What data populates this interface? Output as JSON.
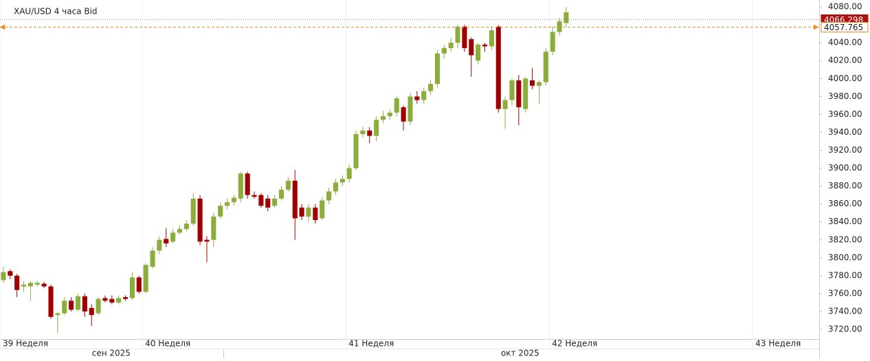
{
  "chart_data": {
    "type": "candlestick",
    "title": "XAU/USD  4 часа Bid",
    "up_color": "#8cac3c",
    "down_color": "#a00000",
    "open": [
      3775,
      3785,
      3780,
      3768,
      3768,
      3770,
      3771,
      3768,
      3736,
      3738,
      3752,
      3742,
      3757,
      3744,
      3738,
      3755,
      3754,
      3750,
      3756,
      3755,
      3778,
      3762,
      3790,
      3808,
      3821,
      3818,
      3828,
      3832,
      3838,
      3866,
      3820,
      3820,
      3846,
      3858,
      3862,
      3866,
      3894,
      3870,
      3870,
      3866,
      3858,
      3866,
      3876,
      3886,
      3856,
      3846,
      3856,
      3844,
      3864,
      3874,
      3884,
      3888,
      3900,
      3938,
      3942,
      3936,
      3954,
      3958,
      3962,
      3968,
      3952,
      3980,
      3976,
      3986,
      3994,
      4028,
      4034,
      4040,
      4058,
      4044,
      4020,
      4038,
      4036,
      4058,
      3966,
      3976,
      3998,
      3966,
      3998,
      3992,
      3996,
      4030,
      4052,
      4062
    ],
    "high": [
      3790,
      3787,
      3782,
      3774,
      3774,
      3774,
      3773,
      3770,
      3740,
      3756,
      3756,
      3760,
      3760,
      3748,
      3756,
      3758,
      3758,
      3758,
      3758,
      3784,
      3780,
      3794,
      3812,
      3824,
      3833,
      3832,
      3836,
      3842,
      3872,
      3870,
      3824,
      3850,
      3862,
      3866,
      3870,
      3896,
      3896,
      3874,
      3872,
      3870,
      3870,
      3880,
      3890,
      3898,
      3860,
      3860,
      3860,
      3868,
      3878,
      3888,
      3892,
      3904,
      3942,
      3946,
      3946,
      3958,
      3964,
      3966,
      3980,
      3970,
      3984,
      3986,
      3990,
      3998,
      4032,
      4038,
      4046,
      4060,
      4060,
      4046,
      4040,
      4040,
      4058,
      4060,
      3980,
      4000,
      4004,
      4002,
      4012,
      3998,
      4034,
      4058,
      4068,
      4080
    ],
    "low": [
      3772,
      3776,
      3756,
      3762,
      3752,
      3768,
      3766,
      3732,
      3716,
      3736,
      3740,
      3740,
      3734,
      3724,
      3736,
      3750,
      3748,
      3748,
      3752,
      3753,
      3760,
      3760,
      3788,
      3804,
      3812,
      3816,
      3826,
      3830,
      3836,
      3814,
      3795,
      3812,
      3844,
      3854,
      3858,
      3862,
      3866,
      3866,
      3856,
      3852,
      3856,
      3864,
      3874,
      3820,
      3842,
      3840,
      3838,
      3842,
      3860,
      3870,
      3880,
      3884,
      3898,
      3934,
      3928,
      3930,
      3950,
      3954,
      3958,
      3942,
      3948,
      3972,
      3972,
      3982,
      3990,
      4022,
      4030,
      4034,
      4030,
      4002,
      4016,
      4030,
      4032,
      3962,
      3944,
      3970,
      3948,
      3962,
      3988,
      3972,
      3992,
      4026,
      4048,
      4058
    ],
    "close": [
      3784,
      3780,
      3764,
      3770,
      3772,
      3772,
      3768,
      3734,
      3738,
      3752,
      3742,
      3757,
      3740,
      3736,
      3754,
      3752,
      3750,
      3755,
      3754,
      3778,
      3762,
      3792,
      3808,
      3820,
      3816,
      3828,
      3832,
      3838,
      3866,
      3818,
      3818,
      3846,
      3858,
      3862,
      3867,
      3894,
      3870,
      3868,
      3858,
      3856,
      3866,
      3876,
      3886,
      3844,
      3846,
      3856,
      3842,
      3864,
      3874,
      3884,
      3888,
      3900,
      3938,
      3942,
      3936,
      3954,
      3958,
      3962,
      3978,
      3952,
      3980,
      3976,
      3986,
      3994,
      4028,
      4034,
      4040,
      4058,
      4034,
      4026,
      4038,
      4036,
      4054,
      3966,
      3976,
      3998,
      3968,
      4000,
      3992,
      3996,
      4030,
      4052,
      4064,
      4074
    ],
    "xlim": [
      -0.5,
      120.3
    ],
    "xticks": [
      {
        "value": -0.5,
        "label": "39 Неделя"
      },
      {
        "value": 20.5,
        "label": "40 Неделя"
      },
      {
        "value": 50.5,
        "label": "41 Неделя"
      },
      {
        "value": 80.5,
        "label": "42 Неделя"
      },
      {
        "value": 110.5,
        "label": "43 Неделя"
      }
    ],
    "months": [
      {
        "value": 15.9,
        "label": "сен 2025"
      },
      {
        "value": 76.2,
        "label": "окт 2025"
      }
    ],
    "ylim": [
      3709.3,
      4087.7
    ],
    "yticks": [
      {
        "value": 3720,
        "label": "3720.00"
      },
      {
        "value": 3740,
        "label": "3740.00"
      },
      {
        "value": 3760,
        "label": "3760.00"
      },
      {
        "value": 3780,
        "label": "3780.00"
      },
      {
        "value": 3800,
        "label": "3800.00"
      },
      {
        "value": 3820,
        "label": "3820.00"
      },
      {
        "value": 3840,
        "label": "3840.00"
      },
      {
        "value": 3860,
        "label": "3860.00"
      },
      {
        "value": 3880,
        "label": "3880.00"
      },
      {
        "value": 3900,
        "label": "3900.00"
      },
      {
        "value": 3920,
        "label": "3920.00"
      },
      {
        "value": 3940,
        "label": "3940.00"
      },
      {
        "value": 3960,
        "label": "3960.00"
      },
      {
        "value": 3980,
        "label": "3980.00"
      },
      {
        "value": 4000,
        "label": "4000.00"
      },
      {
        "value": 4020,
        "label": "4020.00"
      },
      {
        "value": 4040,
        "label": "4040.00"
      },
      {
        "value": 4060,
        "label": "4060.00"
      },
      {
        "value": 4080,
        "label": "4080.00"
      }
    ],
    "price_lines": [
      {
        "value": 4066.298,
        "color": "#b01010",
        "style": "dotted"
      },
      {
        "value": 4057.765,
        "color": "#f08a24",
        "style": "dashed"
      }
    ]
  }
}
